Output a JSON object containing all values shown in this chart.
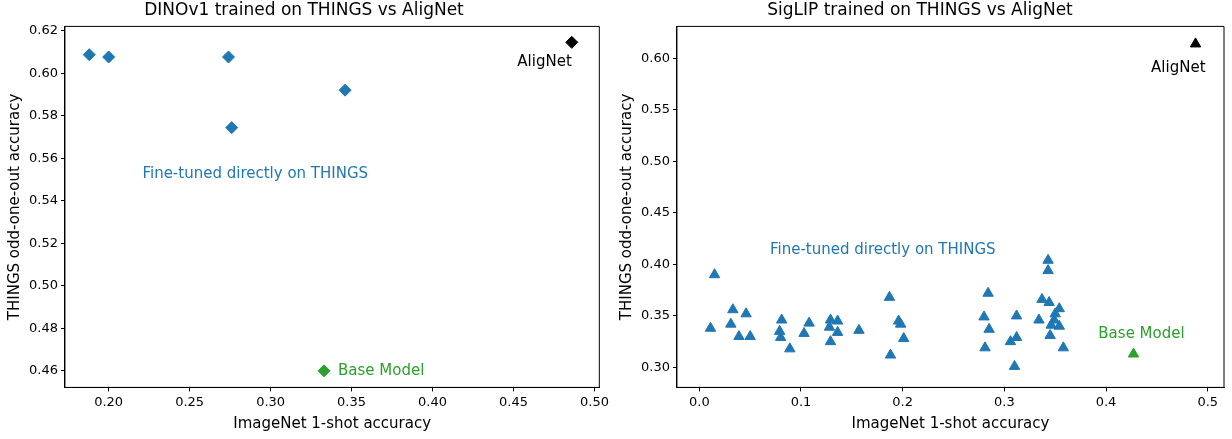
{
  "chart_data": [
    {
      "type": "scatter",
      "title": "DINOv1 trained on THINGS vs AligNet",
      "xlabel": "ImageNet 1-shot accuracy",
      "ylabel": "THINGS odd-one-out accuracy",
      "marker": "diamond",
      "grid": false,
      "legend": false,
      "xlim": [
        0.173,
        0.503
      ],
      "ylim": [
        0.4522,
        0.622
      ],
      "xticks": [
        {
          "value": 0.2,
          "label": "0.20"
        },
        {
          "value": 0.25,
          "label": "0.25"
        },
        {
          "value": 0.3,
          "label": "0.30"
        },
        {
          "value": 0.35,
          "label": "0.35"
        },
        {
          "value": 0.4,
          "label": "0.40"
        },
        {
          "value": 0.45,
          "label": "0.45"
        },
        {
          "value": 0.5,
          "label": "0.50"
        }
      ],
      "yticks": [
        {
          "value": 0.46,
          "label": "0.46"
        },
        {
          "value": 0.48,
          "label": "0.48"
        },
        {
          "value": 0.5,
          "label": "0.50"
        },
        {
          "value": 0.52,
          "label": "0.52"
        },
        {
          "value": 0.54,
          "label": "0.54"
        },
        {
          "value": 0.56,
          "label": "0.56"
        },
        {
          "value": 0.58,
          "label": "0.58"
        },
        {
          "value": 0.6,
          "label": "0.60"
        },
        {
          "value": 0.62,
          "label": "0.62"
        }
      ],
      "series": [
        {
          "name": "Fine-tuned directly on THINGS",
          "color": "#1f77b4",
          "x": [
            0.188,
            0.2,
            0.274,
            0.276,
            0.346
          ],
          "values": [
            0.6087,
            0.6076,
            0.6076,
            0.5744,
            0.592
          ]
        },
        {
          "name": "AligNet",
          "color": "#000000",
          "x": [
            0.486
          ],
          "values": [
            0.6145
          ]
        },
        {
          "name": "Base Model",
          "color": "#2ca02c",
          "x": [
            0.333
          ],
          "values": [
            0.46
          ]
        }
      ]
    },
    {
      "type": "scatter",
      "title": "SigLIP trained on THINGS vs AligNet",
      "xlabel": "ImageNet 1-shot accuracy",
      "ylabel": "THINGS odd-one-out accuracy",
      "marker": "triangle",
      "grid": false,
      "legend": false,
      "xlim": [
        -0.022,
        0.516
      ],
      "ylim": [
        0.2806,
        0.631
      ],
      "xticks": [
        {
          "value": 0,
          "label": "0.0"
        },
        {
          "value": 0.1,
          "label": "0.1"
        },
        {
          "value": 0.2,
          "label": "0.2"
        },
        {
          "value": 0.3,
          "label": "0.3"
        },
        {
          "value": 0.4,
          "label": "0.4"
        },
        {
          "value": 0.5,
          "label": "0.5"
        }
      ],
      "yticks": [
        {
          "value": 0.3,
          "label": "0.30"
        },
        {
          "value": 0.35,
          "label": "0.35"
        },
        {
          "value": 0.4,
          "label": "0.40"
        },
        {
          "value": 0.45,
          "label": "0.45"
        },
        {
          "value": 0.5,
          "label": "0.50"
        },
        {
          "value": 0.55,
          "label": "0.55"
        },
        {
          "value": 0.6,
          "label": "0.60"
        }
      ],
      "series": [
        {
          "name": "Fine-tuned directly on THINGS",
          "color": "#1f77b4",
          "x": [
            0.015,
            0.011,
            0.033,
            0.031,
            0.046,
            0.039,
            0.05,
            0.081,
            0.079,
            0.08,
            0.089,
            0.108,
            0.103,
            0.129,
            0.136,
            0.128,
            0.136,
            0.13,
            0.129,
            0.157,
            0.187,
            0.188,
            0.196,
            0.198,
            0.201,
            0.343,
            0.343,
            0.284,
            0.28,
            0.285,
            0.281,
            0.312,
            0.312,
            0.306,
            0.31,
            0.337,
            0.344,
            0.354,
            0.35,
            0.334,
            0.349,
            0.346,
            0.354,
            0.345,
            0.358
          ],
          "values": [
            0.39,
            0.338,
            0.356,
            0.342,
            0.352,
            0.33,
            0.33,
            0.346,
            0.335,
            0.329,
            0.318,
            0.343,
            0.333,
            0.346,
            0.345,
            0.339,
            0.334,
            null,
            0.325,
            0.336,
            0.368,
            0.312,
            0.345,
            0.342,
            0.328,
            0.404,
            0.394,
            0.372,
            0.349,
            0.337,
            0.319,
            0.35,
            0.329,
            0.325,
            0.301,
            0.366,
            0.363,
            0.357,
            0.352,
            0.346,
            0.346,
            0.341,
            0.34,
            0.331,
            0.319
          ]
        },
        {
          "name": "AligNet",
          "color": "#000000",
          "x": [
            0.488
          ],
          "values": [
            0.614
          ]
        },
        {
          "name": "Base Model",
          "color": "#2ca02c",
          "x": [
            0.427
          ],
          "values": [
            0.313
          ]
        }
      ]
    }
  ]
}
